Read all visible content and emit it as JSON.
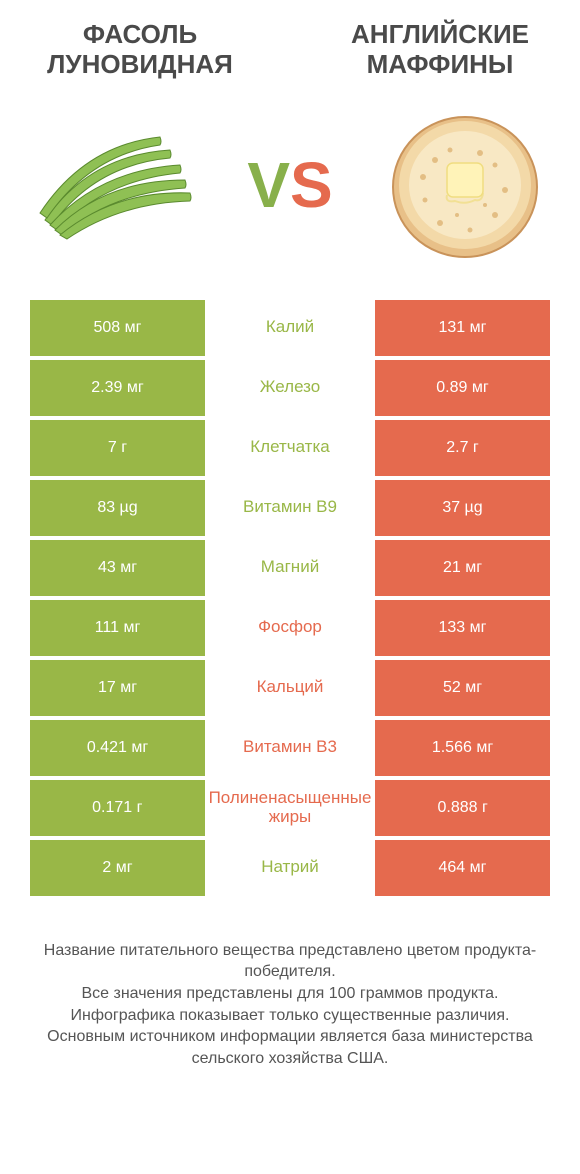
{
  "colors": {
    "green": "#99b747",
    "orange": "#e56a4e",
    "text": "#4a4a4a"
  },
  "header": {
    "left_title": "ФАСОЛЬ ЛУНОВИДНАЯ",
    "right_title": "АНГЛИЙСКИЕ МАФФИНЫ"
  },
  "vs": {
    "v": "V",
    "s": "S"
  },
  "rows": [
    {
      "left": "508 мг",
      "label": "Калий",
      "right": "131 мг",
      "winner": "left"
    },
    {
      "left": "2.39 мг",
      "label": "Железо",
      "right": "0.89 мг",
      "winner": "left"
    },
    {
      "left": "7 г",
      "label": "Клетчатка",
      "right": "2.7 г",
      "winner": "left"
    },
    {
      "left": "83 µg",
      "label": "Витамин B9",
      "right": "37 µg",
      "winner": "left"
    },
    {
      "left": "43 мг",
      "label": "Магний",
      "right": "21 мг",
      "winner": "left"
    },
    {
      "left": "111 мг",
      "label": "Фосфор",
      "right": "133 мг",
      "winner": "right"
    },
    {
      "left": "17 мг",
      "label": "Кальций",
      "right": "52 мг",
      "winner": "right"
    },
    {
      "left": "0.421 мг",
      "label": "Витамин B3",
      "right": "1.566 мг",
      "winner": "right"
    },
    {
      "left": "0.171 г",
      "label": "Полиненасыщенные жиры",
      "right": "0.888 г",
      "winner": "right"
    },
    {
      "left": "2 мг",
      "label": "Натрий",
      "right": "464 мг",
      "winner": "left"
    }
  ],
  "footer": {
    "line1": "Название питательного вещества представлено цветом продукта-победителя.",
    "line2": "Все значения представлены для 100 граммов продукта.",
    "line3": "Инфографика показывает только существенные различия.",
    "line4": "Основным источником информации является база министерства сельского хозяйства США."
  }
}
